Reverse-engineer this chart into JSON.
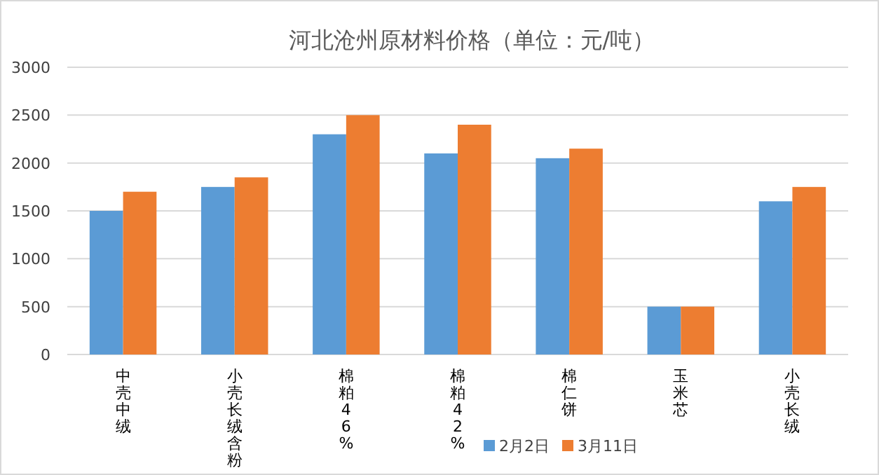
{
  "chart_data": {
    "type": "bar",
    "title": "河北沧州原材料价格（单位：元/吨）",
    "categories": [
      "中壳中绒",
      "小壳长绒含粉",
      "棉粕46%",
      "棉粕42%",
      "棉仁饼",
      "玉米芯",
      "小壳长绒"
    ],
    "series": [
      {
        "name": "2月2日",
        "color": "#5b9bd5",
        "values": [
          1500,
          1750,
          2300,
          2100,
          2050,
          500,
          1600
        ]
      },
      {
        "name": "3月11日",
        "color": "#ed7d31",
        "values": [
          1700,
          1850,
          2500,
          2400,
          2150,
          500,
          1750
        ]
      }
    ],
    "ylim": [
      0,
      3000
    ],
    "yticks": [
      0,
      500,
      1000,
      1500,
      2000,
      2500,
      3000
    ],
    "grid": "y",
    "legend": "bottom right"
  }
}
